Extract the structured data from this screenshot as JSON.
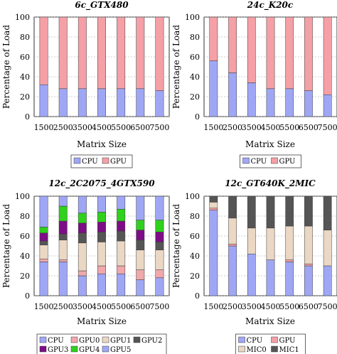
{
  "colors": {
    "CPU": "#9fa7f5",
    "GPU": "#f4a0a6",
    "GPU0": "#f0a8ac",
    "GPU1": "#ead7c4",
    "GPU2": "#555555",
    "GPU3": "#7d0d86",
    "GPU4": "#2fd11d",
    "GPU5": "#9fa7f5",
    "MIC0": "#ead7c4",
    "MIC1": "#555555"
  },
  "chart_data": [
    {
      "type": "bar",
      "stacked": true,
      "title": "6c_GTX480",
      "xlabel": "Matrix Size",
      "ylabel": "Percentage of Load",
      "ylim": [
        0,
        100
      ],
      "yticks": [
        "0",
        "20",
        "40",
        "60",
        "80",
        "100"
      ],
      "categories": [
        "1500",
        "2500",
        "3500",
        "4500",
        "5500",
        "6500",
        "7500"
      ],
      "grid": true,
      "legend_position": "below",
      "series": [
        {
          "name": "CPU",
          "color_key": "CPU",
          "values": [
            32,
            28,
            28,
            28,
            28,
            28,
            26
          ]
        },
        {
          "name": "GPU",
          "color_key": "GPU",
          "values": [
            68,
            72,
            72,
            72,
            72,
            72,
            74
          ]
        }
      ]
    },
    {
      "type": "bar",
      "stacked": true,
      "title": "24c_K20c",
      "xlabel": "Matrix Size",
      "ylabel": "Percentage of Load",
      "ylim": [
        0,
        100
      ],
      "yticks": [
        "0",
        "20",
        "40",
        "60",
        "80",
        "100"
      ],
      "categories": [
        "1500",
        "2500",
        "3500",
        "4500",
        "5500",
        "6500",
        "7500"
      ],
      "grid": true,
      "legend_position": "below",
      "series": [
        {
          "name": "CPU",
          "color_key": "CPU",
          "values": [
            56,
            44,
            34,
            28,
            28,
            26,
            22
          ]
        },
        {
          "name": "GPU",
          "color_key": "GPU",
          "values": [
            44,
            56,
            66,
            72,
            72,
            74,
            78
          ]
        }
      ]
    },
    {
      "type": "bar",
      "stacked": true,
      "title": "12c_2C2075_4GTX590",
      "xlabel": "Matrix Size",
      "ylabel": "Percentage of Load",
      "ylim": [
        0,
        100
      ],
      "yticks": [
        "0",
        "20",
        "40",
        "60",
        "80",
        "100"
      ],
      "categories": [
        "1500",
        "2500",
        "3500",
        "4500",
        "5500",
        "6500",
        "7500"
      ],
      "grid": true,
      "legend_position": "below",
      "series": [
        {
          "name": "CPU",
          "color_key": "CPU",
          "values": [
            34,
            34,
            20,
            22,
            22,
            16,
            18
          ]
        },
        {
          "name": "GPU0",
          "color_key": "GPU0",
          "values": [
            3,
            2,
            5,
            8,
            8,
            10,
            8
          ]
        },
        {
          "name": "GPU1",
          "color_key": "GPU1",
          "values": [
            14,
            20,
            28,
            24,
            25,
            20,
            20
          ]
        },
        {
          "name": "GPU2",
          "color_key": "GPU2",
          "values": [
            4,
            6,
            10,
            10,
            10,
            10,
            8
          ]
        },
        {
          "name": "GPU3",
          "color_key": "GPU3",
          "values": [
            8,
            13,
            10,
            10,
            10,
            10,
            10
          ]
        },
        {
          "name": "GPU4",
          "color_key": "GPU4",
          "values": [
            6,
            15,
            10,
            10,
            12,
            10,
            12
          ]
        },
        {
          "name": "GPU5",
          "color_key": "GPU5",
          "values": [
            31,
            10,
            17,
            16,
            13,
            24,
            24
          ]
        }
      ]
    },
    {
      "type": "bar",
      "stacked": true,
      "title": "12c_GT640K_2MIC",
      "xlabel": "Matrix Size",
      "ylabel": "Percentage of Load",
      "ylim": [
        0,
        100
      ],
      "yticks": [
        "0",
        "20",
        "40",
        "60",
        "80",
        "100"
      ],
      "categories": [
        "1500",
        "2500",
        "3500",
        "4500",
        "5500",
        "6500",
        "7500"
      ],
      "grid": true,
      "legend_position": "below",
      "series": [
        {
          "name": "CPU",
          "color_key": "CPU",
          "values": [
            86,
            50,
            42,
            36,
            34,
            30,
            30
          ]
        },
        {
          "name": "GPU",
          "color_key": "GPU",
          "values": [
            2,
            2,
            0,
            0,
            2,
            2,
            0
          ]
        },
        {
          "name": "MIC0",
          "color_key": "MIC0",
          "values": [
            6,
            26,
            26,
            32,
            34,
            38,
            36
          ]
        },
        {
          "name": "MIC1",
          "color_key": "MIC1",
          "values": [
            6,
            22,
            32,
            32,
            30,
            30,
            34
          ]
        }
      ]
    }
  ]
}
